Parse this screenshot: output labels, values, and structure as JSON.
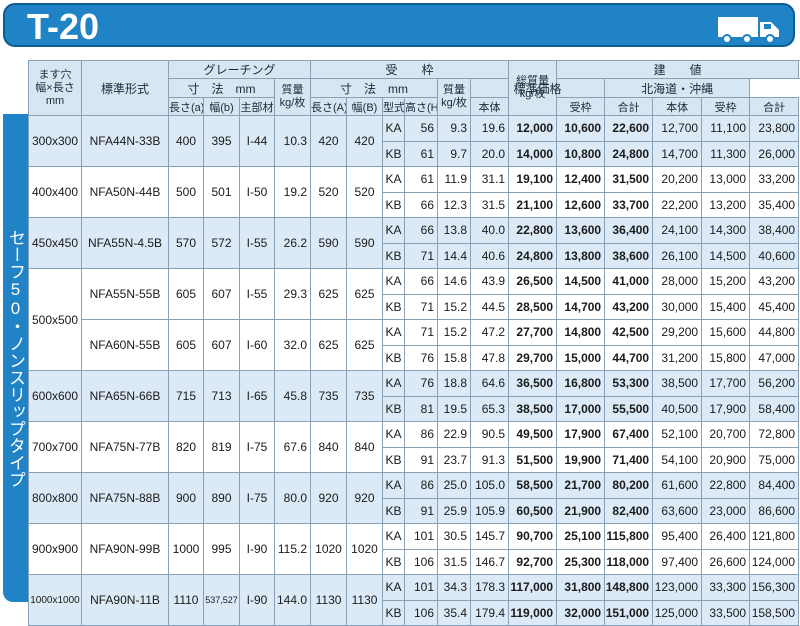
{
  "title": "T-20",
  "side_label": "セーフ50・ノンスリップタイプ",
  "headers": {
    "size": "ます穴 幅×長さ mm",
    "size_lines": [
      "ます穴",
      "幅×長さ",
      "mm"
    ],
    "model": "標準形式",
    "grating": "グレーチング",
    "grating_dim": "寸　法　mm",
    "grating_mass": "質量 kg/枚",
    "frame": "受　　枠",
    "frame_dim": "寸　法　mm",
    "frame_mass": "質量 kg/枚",
    "total_mass": "総質量 kg/枚",
    "price": "建　　値",
    "standard_price": "標準価格",
    "hokkaido_price": "北海道・沖縄",
    "sub": [
      "長さ(a)",
      "幅(b)",
      "主部材",
      "長さ(A)",
      "幅(B)",
      "型式",
      "高さ(H)",
      "本体",
      "受枠",
      "合計",
      "本体",
      "受枠",
      "合計"
    ]
  },
  "groups": [
    {
      "size": "300x300",
      "shade": true,
      "models": [
        {
          "model": "NFA44N-33B",
          "a": "400",
          "b": "395",
          "main": "I-44",
          "gmass": "10.3",
          "A": "420",
          "B": "420",
          "rows": [
            {
              "type": "KA",
              "H": "56",
              "fmass": "9.3",
              "total": "19.6",
              "p": [
                "12,000",
                "10,600",
                "22,600"
              ],
              "h": [
                "12,700",
                "11,100",
                "23,800"
              ]
            },
            {
              "type": "KB",
              "H": "61",
              "fmass": "9.7",
              "total": "20.0",
              "p": [
                "14,000",
                "10,800",
                "24,800"
              ],
              "h": [
                "14,700",
                "11,300",
                "26,000"
              ]
            }
          ]
        }
      ]
    },
    {
      "size": "400x400",
      "shade": false,
      "models": [
        {
          "model": "NFA50N-44B",
          "a": "500",
          "b": "501",
          "main": "I-50",
          "gmass": "19.2",
          "A": "520",
          "B": "520",
          "rows": [
            {
              "type": "KA",
              "H": "61",
              "fmass": "11.9",
              "total": "31.1",
              "p": [
                "19,100",
                "12,400",
                "31,500"
              ],
              "h": [
                "20,200",
                "13,000",
                "33,200"
              ]
            },
            {
              "type": "KB",
              "H": "66",
              "fmass": "12.3",
              "total": "31.5",
              "p": [
                "21,100",
                "12,600",
                "33,700"
              ],
              "h": [
                "22,200",
                "13,200",
                "35,400"
              ]
            }
          ]
        }
      ]
    },
    {
      "size": "450x450",
      "shade": true,
      "models": [
        {
          "model": "NFA55N-4.5B",
          "a": "570",
          "b": "572",
          "main": "I-55",
          "gmass": "26.2",
          "A": "590",
          "B": "590",
          "rows": [
            {
              "type": "KA",
              "H": "66",
              "fmass": "13.8",
              "total": "40.0",
              "p": [
                "22,800",
                "13,600",
                "36,400"
              ],
              "h": [
                "24,100",
                "14,300",
                "38,400"
              ]
            },
            {
              "type": "KB",
              "H": "71",
              "fmass": "14.4",
              "total": "40.6",
              "p": [
                "24,800",
                "13,800",
                "38,600"
              ],
              "h": [
                "26,100",
                "14,500",
                "40,600"
              ]
            }
          ]
        }
      ]
    },
    {
      "size": "500x500",
      "shade": false,
      "models": [
        {
          "model": "NFA55N-55B",
          "a": "605",
          "b": "607",
          "main": "I-55",
          "gmass": "29.3",
          "A": "625",
          "B": "625",
          "rows": [
            {
              "type": "KA",
              "H": "66",
              "fmass": "14.6",
              "total": "43.9",
              "p": [
                "26,500",
                "14,500",
                "41,000"
              ],
              "h": [
                "28,000",
                "15,200",
                "43,200"
              ]
            },
            {
              "type": "KB",
              "H": "71",
              "fmass": "15.2",
              "total": "44.5",
              "p": [
                "28,500",
                "14,700",
                "43,200"
              ],
              "h": [
                "30,000",
                "15,400",
                "45,400"
              ]
            }
          ]
        },
        {
          "model": "NFA60N-55B",
          "a": "605",
          "b": "607",
          "main": "I-60",
          "gmass": "32.0",
          "A": "625",
          "B": "625",
          "rows": [
            {
              "type": "KA",
              "H": "71",
              "fmass": "15.2",
              "total": "47.2",
              "p": [
                "27,700",
                "14,800",
                "42,500"
              ],
              "h": [
                "29,200",
                "15,600",
                "44,800"
              ]
            },
            {
              "type": "KB",
              "H": "76",
              "fmass": "15.8",
              "total": "47.8",
              "p": [
                "29,700",
                "15,000",
                "44,700"
              ],
              "h": [
                "31,200",
                "15,800",
                "47,000"
              ]
            }
          ]
        }
      ]
    },
    {
      "size": "600x600",
      "shade": true,
      "models": [
        {
          "model": "NFA65N-66B",
          "a": "715",
          "b": "713",
          "main": "I-65",
          "gmass": "45.8",
          "A": "735",
          "B": "735",
          "rows": [
            {
              "type": "KA",
              "H": "76",
              "fmass": "18.8",
              "total": "64.6",
              "p": [
                "36,500",
                "16,800",
                "53,300"
              ],
              "h": [
                "38,500",
                "17,700",
                "56,200"
              ]
            },
            {
              "type": "KB",
              "H": "81",
              "fmass": "19.5",
              "total": "65.3",
              "p": [
                "38,500",
                "17,000",
                "55,500"
              ],
              "h": [
                "40,500",
                "17,900",
                "58,400"
              ]
            }
          ]
        }
      ]
    },
    {
      "size": "700x700",
      "shade": false,
      "models": [
        {
          "model": "NFA75N-77B",
          "a": "820",
          "b": "819",
          "main": "I-75",
          "gmass": "67.6",
          "A": "840",
          "B": "840",
          "rows": [
            {
              "type": "KA",
              "H": "86",
              "fmass": "22.9",
              "total": "90.5",
              "p": [
                "49,500",
                "17,900",
                "67,400"
              ],
              "h": [
                "52,100",
                "20,700",
                "72,800"
              ]
            },
            {
              "type": "KB",
              "H": "91",
              "fmass": "23.7",
              "total": "91.3",
              "p": [
                "51,500",
                "19,900",
                "71,400"
              ],
              "h": [
                "54,100",
                "20,900",
                "75,000"
              ]
            }
          ]
        }
      ]
    },
    {
      "size": "800x800",
      "shade": true,
      "models": [
        {
          "model": "NFA75N-88B",
          "a": "900",
          "b": "890",
          "main": "I-75",
          "gmass": "80.0",
          "A": "920",
          "B": "920",
          "rows": [
            {
              "type": "KA",
              "H": "86",
              "fmass": "25.0",
              "total": "105.0",
              "p": [
                "58,500",
                "21,700",
                "80,200"
              ],
              "h": [
                "61,600",
                "22,800",
                "84,400"
              ]
            },
            {
              "type": "KB",
              "H": "91",
              "fmass": "25.9",
              "total": "105.9",
              "p": [
                "60,500",
                "21,900",
                "82,400"
              ],
              "h": [
                "63,600",
                "23,000",
                "86,600"
              ]
            }
          ]
        }
      ]
    },
    {
      "size": "900x900",
      "shade": false,
      "models": [
        {
          "model": "NFA90N-99B",
          "a": "1000",
          "b": "995",
          "main": "I-90",
          "gmass": "115.2",
          "A": "1020",
          "B": "1020",
          "rows": [
            {
              "type": "KA",
              "H": "101",
              "fmass": "30.5",
              "total": "145.7",
              "p": [
                "90,700",
                "25,100",
                "115,800"
              ],
              "h": [
                "95,400",
                "26,400",
                "121,800"
              ]
            },
            {
              "type": "KB",
              "H": "106",
              "fmass": "31.5",
              "total": "146.7",
              "p": [
                "92,700",
                "25,300",
                "118,000"
              ],
              "h": [
                "97,400",
                "26,600",
                "124,000"
              ]
            }
          ]
        }
      ]
    },
    {
      "size": "1000x1000",
      "shade": true,
      "models": [
        {
          "model": "NFA90N-11B",
          "a": "1110",
          "b": "537,527",
          "main": "I-90",
          "gmass": "144.0",
          "A": "1130",
          "B": "1130",
          "rows": [
            {
              "type": "KA",
              "H": "101",
              "fmass": "34.3",
              "total": "178.3",
              "p": [
                "117,000",
                "31,800",
                "148,800"
              ],
              "h": [
                "123,000",
                "33,300",
                "156,300"
              ]
            },
            {
              "type": "KB",
              "H": "106",
              "fmass": "35.4",
              "total": "179.4",
              "p": [
                "119,000",
                "32,000",
                "151,000"
              ],
              "h": [
                "125,000",
                "33,500",
                "158,500"
              ]
            }
          ]
        }
      ]
    }
  ]
}
